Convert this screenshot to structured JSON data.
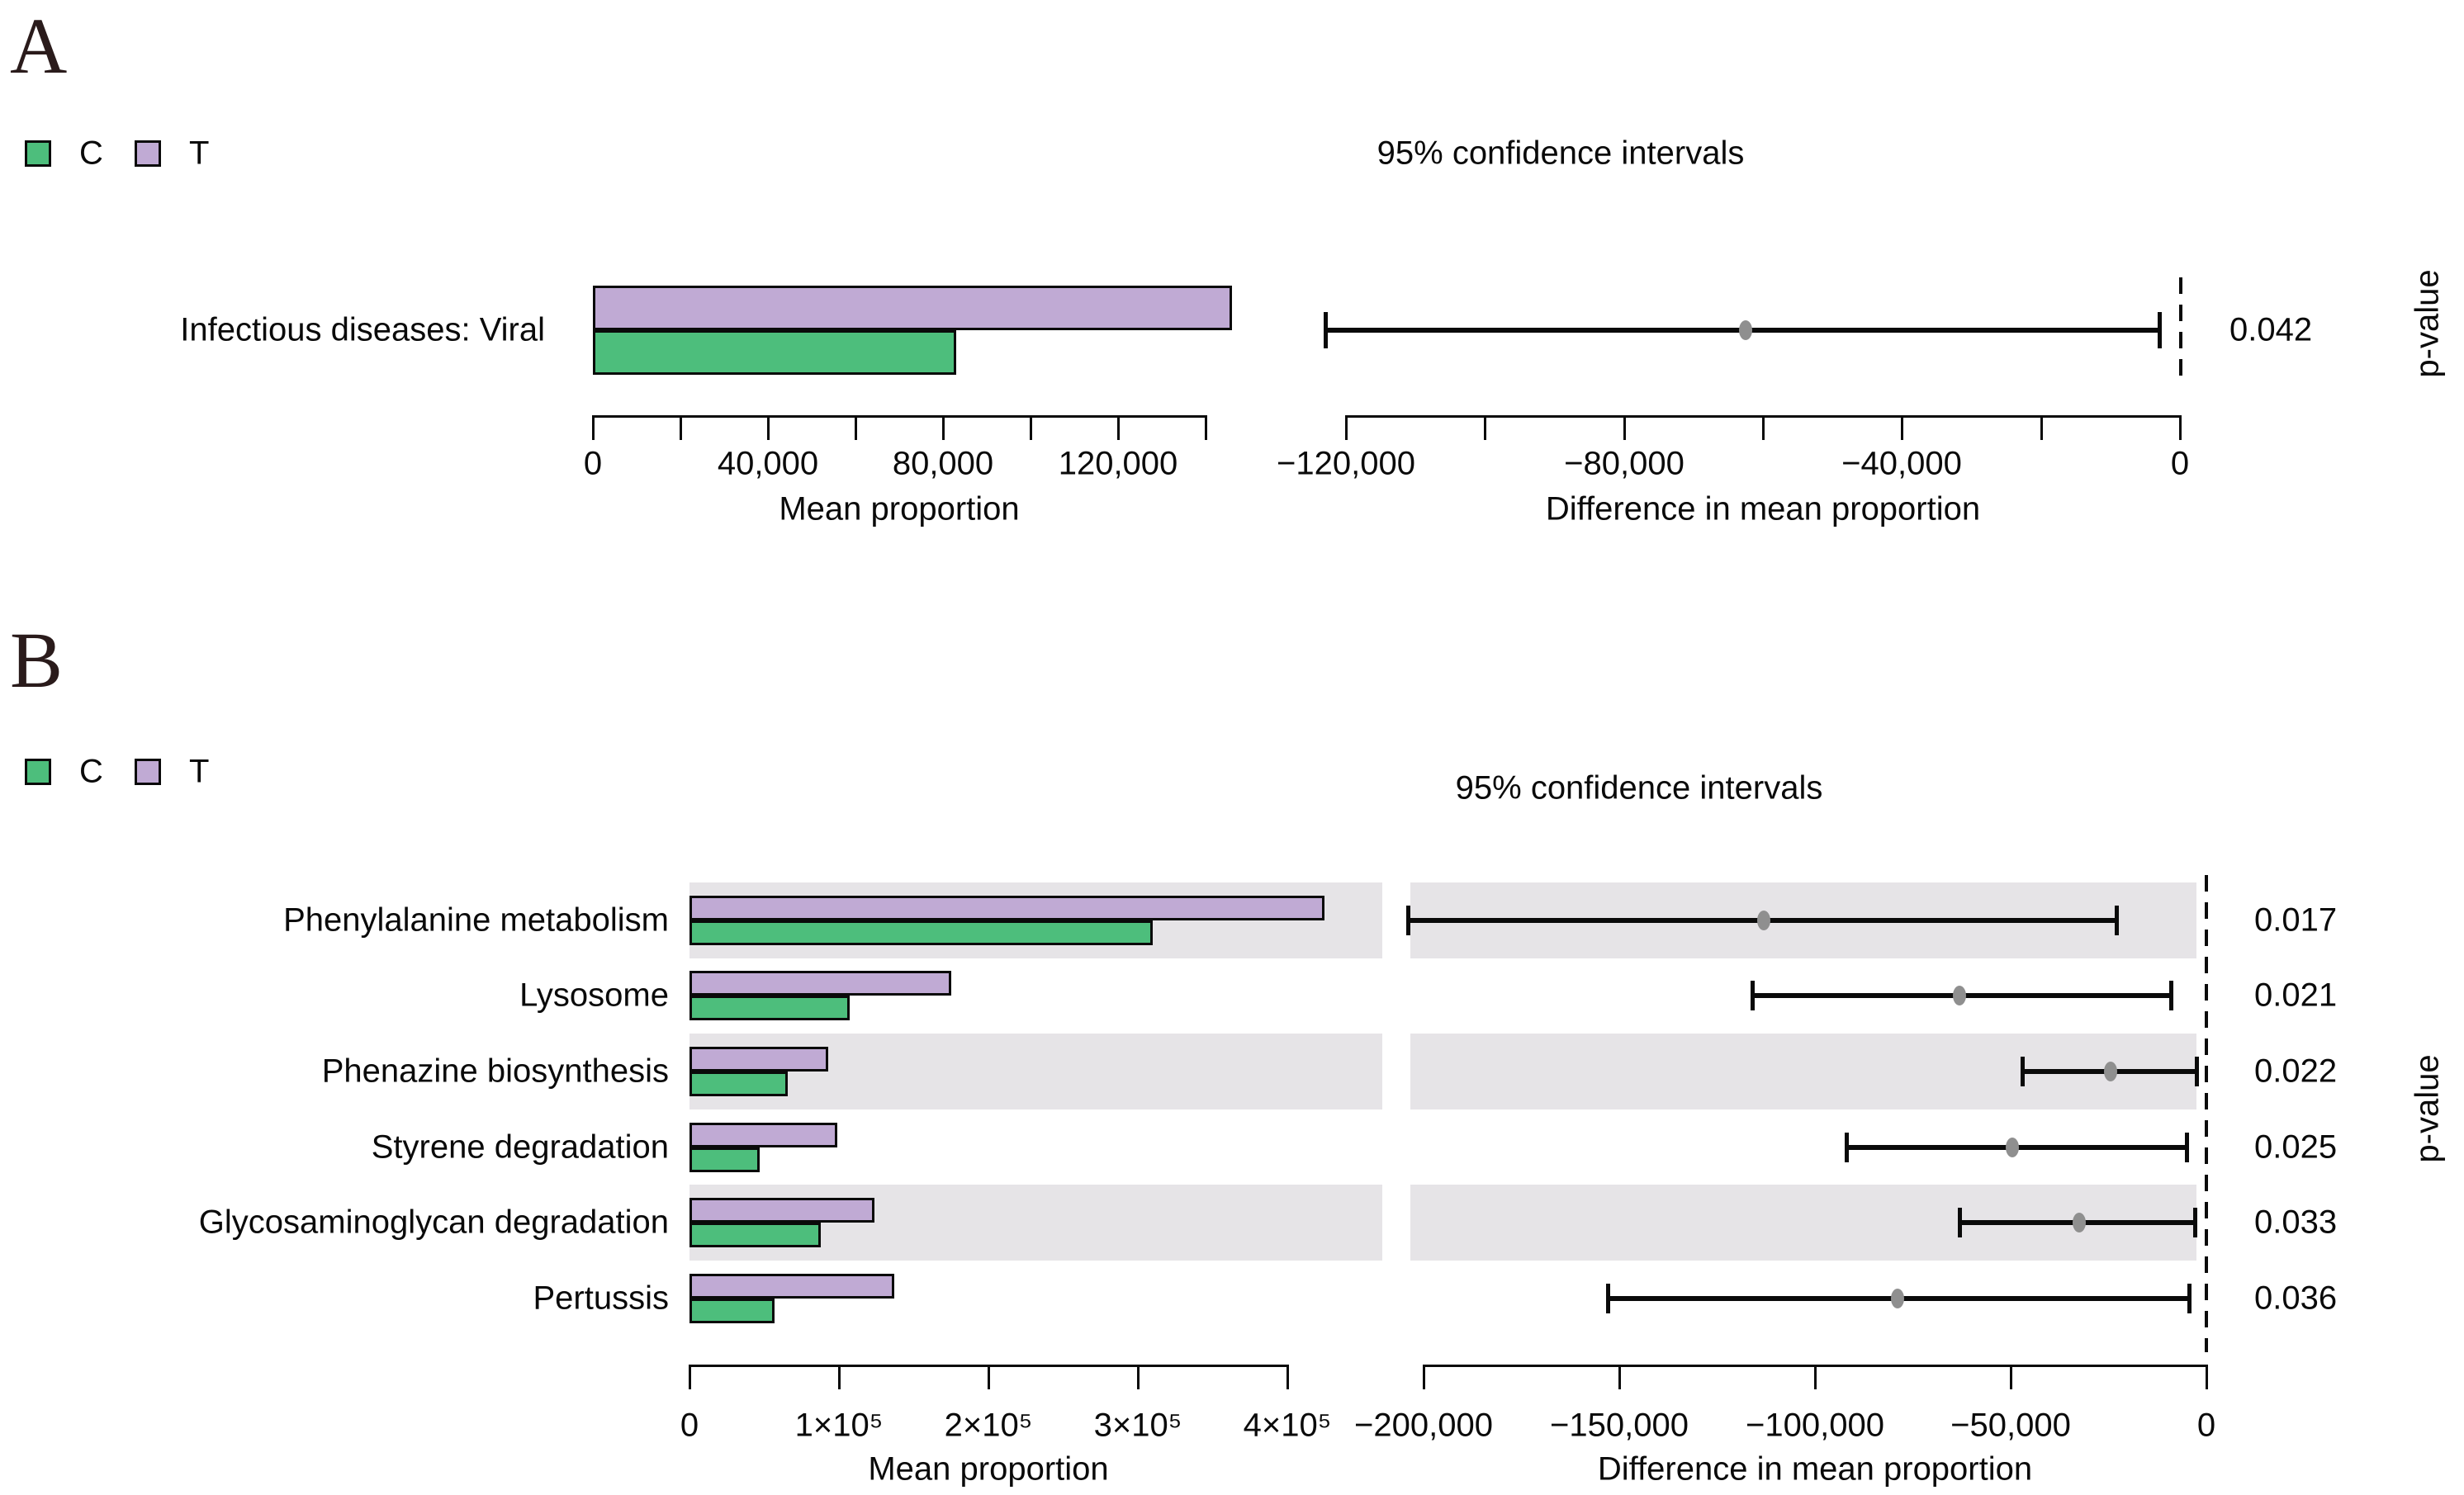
{
  "chart_data": {
    "type": "bar",
    "figure_kind": "extended-error-bar",
    "legend": {
      "c_label": "C",
      "t_label": "T"
    },
    "colors": {
      "C": "#4DBE7C",
      "T": "#C0AAD4",
      "row_band": "#E6E4E7",
      "ci_dot": "#8F8F8F",
      "line": "#0a0a0a",
      "panel_letter": "#2A1B1B"
    },
    "panels": [
      {
        "letter": "A",
        "ci_title": "95% confidence intervals",
        "p_axis_label": "p-value",
        "bar_axis": {
          "label": "Mean proportion",
          "min": 0,
          "max": 140000,
          "tick_step": 20000,
          "tick_labels": [
            {
              "value": 0,
              "label": "0"
            },
            {
              "value": 40000,
              "label": "40,000"
            },
            {
              "value": 80000,
              "label": "80,000"
            },
            {
              "value": 120000,
              "label": "120,000"
            }
          ]
        },
        "diff_axis": {
          "label": "Difference in mean proportion",
          "min": -120000,
          "max": 0,
          "tick_step": 20000,
          "tick_labels": [
            {
              "value": -120000,
              "label": "−120,000"
            },
            {
              "value": -80000,
              "label": "−80,000"
            },
            {
              "value": -40000,
              "label": "−40,000"
            },
            {
              "value": 0,
              "label": "0"
            }
          ]
        },
        "rows": [
          {
            "category": "Infectious diseases: Viral",
            "mean_proportion": {
              "C": 83000,
              "T": 146000
            },
            "diff_ci": [
              -123000,
              -3000
            ],
            "diff_mean": -62500,
            "p_value": "0.042",
            "shaded": false
          }
        ]
      },
      {
        "letter": "B",
        "ci_title": "95% confidence intervals",
        "p_axis_label": "p-value",
        "bar_axis": {
          "label": "Mean proportion",
          "min": 0,
          "max": 400000,
          "tick_step": 100000,
          "tick_labels": [
            {
              "value": 0,
              "label": "0"
            },
            {
              "value": 100000,
              "label": "1×10⁵"
            },
            {
              "value": 200000,
              "label": "2×10⁵"
            },
            {
              "value": 300000,
              "label": "3×10⁵"
            },
            {
              "value": 400000,
              "label": "4×10⁵"
            }
          ]
        },
        "diff_axis": {
          "label": "Difference in mean proportion",
          "min": -200000,
          "max": 0,
          "tick_step": 50000,
          "tick_labels": [
            {
              "value": -200000,
              "label": "−200,000"
            },
            {
              "value": -150000,
              "label": "−150,000"
            },
            {
              "value": -100000,
              "label": "−100,000"
            },
            {
              "value": -50000,
              "label": "−50,000"
            },
            {
              "value": 0,
              "label": "0"
            }
          ]
        },
        "rows": [
          {
            "category": "Phenylalanine metabolism",
            "mean_proportion": {
              "C": 310000,
              "T": 425000
            },
            "diff_ci": [
              -204000,
              -23000
            ],
            "diff_mean": -113000,
            "p_value": "0.017",
            "shaded": true
          },
          {
            "category": "Lysosome",
            "mean_proportion": {
              "C": 107000,
              "T": 175000
            },
            "diff_ci": [
              -116000,
              -9000
            ],
            "diff_mean": -63000,
            "p_value": "0.021",
            "shaded": false
          },
          {
            "category": "Phenazine biosynthesis",
            "mean_proportion": {
              "C": 66000,
              "T": 93000
            },
            "diff_ci": [
              -47000,
              -2500
            ],
            "diff_mean": -24500,
            "p_value": "0.022",
            "shaded": true
          },
          {
            "category": "Styrene degradation",
            "mean_proportion": {
              "C": 47000,
              "T": 99000
            },
            "diff_ci": [
              -92000,
              -5000
            ],
            "diff_mean": -49500,
            "p_value": "0.025",
            "shaded": false
          },
          {
            "category": "Glycosaminoglycan degradation",
            "mean_proportion": {
              "C": 88000,
              "T": 124000
            },
            "diff_ci": [
              -63000,
              -3000
            ],
            "diff_mean": -32500,
            "p_value": "0.033",
            "shaded": true
          },
          {
            "category": "Pertussis",
            "mean_proportion": {
              "C": 57000,
              "T": 137000
            },
            "diff_ci": [
              -153000,
              -4500
            ],
            "diff_mean": -79000,
            "p_value": "0.036",
            "shaded": false
          }
        ]
      }
    ]
  }
}
